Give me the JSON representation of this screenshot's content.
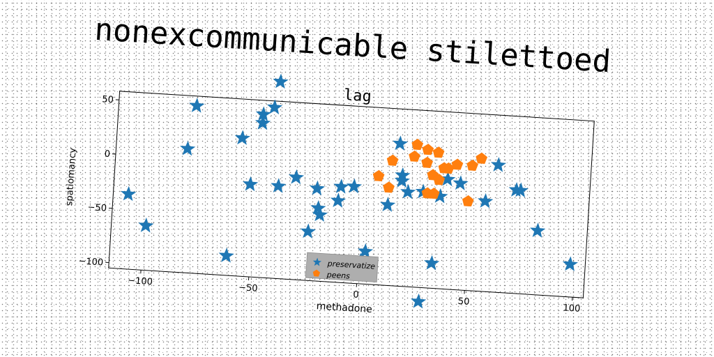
{
  "chart_data": {
    "type": "scatter",
    "suptitle": "nonexcommunicable stilettoed",
    "title": "lag",
    "xlabel": "methadone",
    "ylabel": "spatiomancy",
    "xlim": [
      -115,
      105
    ],
    "ylim": [
      -105,
      58
    ],
    "xticks": [
      -100,
      -50,
      0,
      50,
      100
    ],
    "yticks": [
      -100,
      -50,
      0,
      50
    ],
    "grid": false,
    "legend_position": "lower-center",
    "series": [
      {
        "name": "preservatize",
        "marker": "star",
        "color": "#1f77b4",
        "points": [
          [
            -41,
            76
          ],
          [
            -79,
            49
          ],
          [
            -43,
            52
          ],
          [
            -48,
            45
          ],
          [
            -48,
            37
          ],
          [
            -57,
            22
          ],
          [
            -82,
            9
          ],
          [
            -108,
            -36
          ],
          [
            -99,
            -64
          ],
          [
            -61,
            -87
          ],
          [
            -52,
            -20
          ],
          [
            -39,
            -20
          ],
          [
            -31,
            -11
          ],
          [
            -21,
            -20
          ],
          [
            -20,
            -38
          ],
          [
            -19,
            -44
          ],
          [
            -24,
            -60
          ],
          [
            -10,
            -17
          ],
          [
            -11,
            -30
          ],
          [
            -4,
            -16
          ],
          [
            -2,
            -92
          ],
          [
            1,
            -84
          ],
          [
            3,
            -75
          ],
          [
            16,
            26
          ],
          [
            18,
            -3
          ],
          [
            18,
            -8
          ],
          [
            21,
            -18
          ],
          [
            28,
            -17
          ],
          [
            36,
            -20
          ],
          [
            39,
            -4
          ],
          [
            34,
            -82
          ],
          [
            29,
            -118
          ],
          [
            45,
            -7
          ],
          [
            62,
            12
          ],
          [
            57,
            -22
          ],
          [
            71,
            -10
          ],
          [
            73,
            -10
          ],
          [
            82,
            -46
          ],
          [
            98,
            -75
          ],
          [
            12,
            -31
          ]
        ]
      },
      {
        "name": "peens",
        "marker": "pentagon",
        "color": "#ff7f0e",
        "points": [
          [
            24,
            26
          ],
          [
            29,
            22
          ],
          [
            34,
            20
          ],
          [
            23,
            15
          ],
          [
            29,
            10
          ],
          [
            37,
            6
          ],
          [
            39,
            6
          ],
          [
            43,
            10
          ],
          [
            54,
            17
          ],
          [
            50,
            10
          ],
          [
            13,
            10
          ],
          [
            7,
            -5
          ],
          [
            12,
            -15
          ],
          [
            32,
            -1
          ],
          [
            35,
            -5
          ],
          [
            30,
            -18
          ],
          [
            33,
            -18
          ],
          [
            49,
            -23
          ]
        ]
      }
    ]
  }
}
